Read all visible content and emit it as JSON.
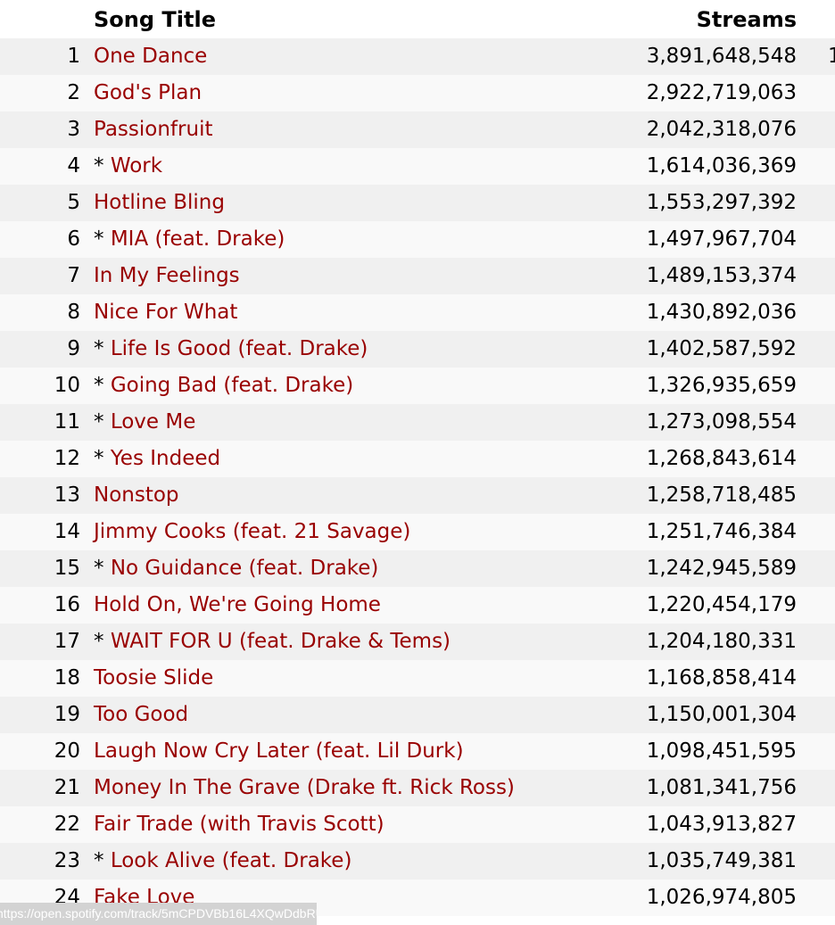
{
  "header": {
    "song_title": "Song Title",
    "streams": "Streams"
  },
  "link_color": "#990000",
  "rows": [
    {
      "rank": "1",
      "prefix": "",
      "title": "One Dance",
      "streams": "3,891,648,548",
      "extra": "1"
    },
    {
      "rank": "2",
      "prefix": "",
      "title": "God's Plan",
      "streams": "2,922,719,063"
    },
    {
      "rank": "3",
      "prefix": "",
      "title": "Passionfruit",
      "streams": "2,042,318,076"
    },
    {
      "rank": "4",
      "prefix": "* ",
      "title": "Work",
      "streams": "1,614,036,369"
    },
    {
      "rank": "5",
      "prefix": "",
      "title": "Hotline Bling",
      "streams": "1,553,297,392"
    },
    {
      "rank": "6",
      "prefix": "* ",
      "title": "MIA (feat. Drake)",
      "streams": "1,497,967,704"
    },
    {
      "rank": "7",
      "prefix": "",
      "title": "In My Feelings",
      "streams": "1,489,153,374"
    },
    {
      "rank": "8",
      "prefix": "",
      "title": "Nice For What",
      "streams": "1,430,892,036"
    },
    {
      "rank": "9",
      "prefix": "* ",
      "title": "Life Is Good (feat. Drake)",
      "streams": "1,402,587,592"
    },
    {
      "rank": "10",
      "prefix": "* ",
      "title": "Going Bad (feat. Drake)",
      "streams": "1,326,935,659"
    },
    {
      "rank": "11",
      "prefix": "* ",
      "title": "Love Me",
      "streams": "1,273,098,554"
    },
    {
      "rank": "12",
      "prefix": "* ",
      "title": "Yes Indeed",
      "streams": "1,268,843,614"
    },
    {
      "rank": "13",
      "prefix": "",
      "title": "Nonstop",
      "streams": "1,258,718,485"
    },
    {
      "rank": "14",
      "prefix": "",
      "title": "Jimmy Cooks (feat. 21 Savage)",
      "streams": "1,251,746,384"
    },
    {
      "rank": "15",
      "prefix": "* ",
      "title": "No Guidance (feat. Drake)",
      "streams": "1,242,945,589"
    },
    {
      "rank": "16",
      "prefix": "",
      "title": "Hold On, We're Going Home",
      "streams": "1,220,454,179"
    },
    {
      "rank": "17",
      "prefix": "* ",
      "title": "WAIT FOR U (feat. Drake & Tems)",
      "streams": "1,204,180,331"
    },
    {
      "rank": "18",
      "prefix": "",
      "title": "Toosie Slide",
      "streams": "1,168,858,414"
    },
    {
      "rank": "19",
      "prefix": "",
      "title": "Too Good",
      "streams": "1,150,001,304"
    },
    {
      "rank": "20",
      "prefix": "",
      "title": "Laugh Now Cry Later (feat. Lil Durk)",
      "streams": "1,098,451,595"
    },
    {
      "rank": "21",
      "prefix": "",
      "title": "Money In The Grave (Drake ft. Rick Ross)",
      "streams": "1,081,341,756"
    },
    {
      "rank": "22",
      "prefix": "",
      "title": "Fair Trade (with Travis Scott)",
      "streams": "1,043,913,827"
    },
    {
      "rank": "23",
      "prefix": "* ",
      "title": "Look Alive (feat. Drake)",
      "streams": "1,035,749,381"
    },
    {
      "rank": "24",
      "prefix": "",
      "title": "Fake Love",
      "streams": "1,026,974,805"
    }
  ],
  "status_bar": {
    "url": "https://open.spotify.com/track/5mCPDVBb16L4XQwDdbRU"
  }
}
